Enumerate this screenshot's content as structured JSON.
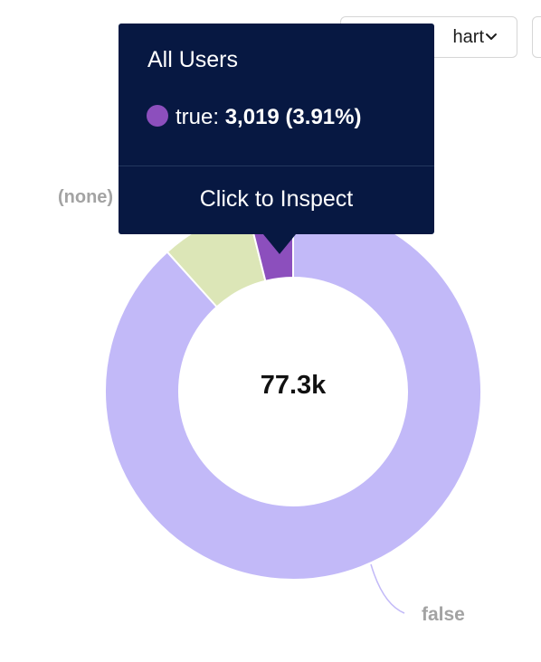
{
  "toolbar": {
    "chart_type_label": "hart"
  },
  "tooltip": {
    "title": "All Users",
    "series_label": "true:",
    "value": "3,019",
    "percent": "(3.91%)",
    "action": "Click to Inspect",
    "dot_color": "#8c4fbd"
  },
  "chart_data": {
    "type": "pie",
    "donut": true,
    "center_label": "77.3k",
    "slices": [
      {
        "label": "false",
        "value": 68280,
        "percent": 88.34,
        "color": "#c2b9f8"
      },
      {
        "label": "(none)",
        "value": 6001,
        "percent": 7.75,
        "color": "#dce6b7"
      },
      {
        "label": "true",
        "value": 3019,
        "percent": 3.91,
        "color": "#8c4fbd"
      }
    ],
    "visible_labels": [
      "(none)",
      "false"
    ]
  }
}
